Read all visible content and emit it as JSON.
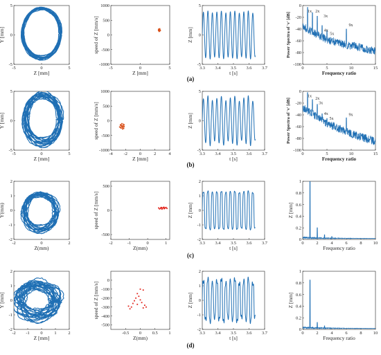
{
  "colors": {
    "blue": "#1f6fb4",
    "red": "#e2231a",
    "orange": "#d9531e",
    "axis": "#222222"
  },
  "rows": [
    {
      "caption": "(a)",
      "panels": [
        {
          "type": "orbit",
          "xlabel": "Z [mm]",
          "ylabel": "Y [mm]",
          "xlim": [
            -5,
            5
          ],
          "ylim": [
            -5,
            5
          ],
          "xticks": [
            "-5",
            "0",
            "5"
          ],
          "yticks": [
            "-5",
            "0",
            "5"
          ],
          "orbit": {
            "cx": 0,
            "cy": 0.3,
            "rx": 3.4,
            "ry": 4.2,
            "spread": 0.35,
            "wobble": 0.08,
            "loops": 14
          }
        },
        {
          "type": "poincare",
          "xlabel": "Z [mm]",
          "ylabel": "speed of Z [mm/s]",
          "xlim": [
            -5,
            5
          ],
          "ylim": [
            -1000,
            1000
          ],
          "xticks": [
            "-5",
            "0",
            "5"
          ],
          "yticks": [
            "-1000",
            "-500",
            "0",
            "500",
            "1000"
          ],
          "color": "orange",
          "points": [
            [
              3.1,
              150
            ],
            [
              3.2,
              180
            ],
            [
              3.3,
              160
            ],
            [
              3.15,
              200
            ],
            [
              3.25,
              140
            ],
            [
              3.35,
              170
            ],
            [
              3.2,
              120
            ],
            [
              3.3,
              210
            ],
            [
              3.1,
              175
            ],
            [
              3.4,
              150
            ],
            [
              3.22,
              190
            ],
            [
              3.28,
              130
            ]
          ]
        },
        {
          "type": "time",
          "xlabel": "t [s]",
          "ylabel": "Z [mm]",
          "xlim": [
            3.3,
            3.7
          ],
          "ylim": [
            -5,
            5
          ],
          "xticks": [
            "3.3",
            "3.4",
            "3.5",
            "3.6",
            "3.7"
          ],
          "yticks": [
            "-5",
            "0",
            "5"
          ],
          "wave": {
            "t0": 3.3,
            "t1": 3.64,
            "cycles": 11.8,
            "amp": 3.9,
            "irreg": 0.2
          }
        },
        {
          "type": "spectrum",
          "xlabel": "Frequency ratio",
          "ylabel": "Power Spectra of 'v' [dB]",
          "xlim": [
            0,
            15
          ],
          "ylim": [
            -100,
            0
          ],
          "xticks": [
            "0",
            "5",
            "10",
            "15"
          ],
          "yticks": [
            "-100",
            "-80",
            "-60",
            "-40",
            "-20",
            "0"
          ],
          "baseline": [
            [
              0,
              -35
            ],
            [
              2,
              -45
            ],
            [
              5,
              -58
            ],
            [
              8,
              -65
            ],
            [
              11,
              -70
            ],
            [
              15,
              -78
            ]
          ],
          "peaks": [
            {
              "x": 1,
              "y": -3
            },
            {
              "x": 2,
              "y": -12
            },
            {
              "x": 3,
              "y": -18
            },
            {
              "x": 4,
              "y": -34
            },
            {
              "x": 5,
              "y": -42
            },
            {
              "x": 9,
              "y": -40
            }
          ],
          "annotations": [
            {
              "text": "1x",
              "x": 1,
              "y": -12
            },
            {
              "text": "2x",
              "x": 2.6,
              "y": -12
            },
            {
              "text": "3x",
              "x": 4.3,
              "y": -20
            },
            {
              "text": "4x",
              "x": 4.4,
              "y": -44
            },
            {
              "text": "5x",
              "x": 5.6,
              "y": -50
            },
            {
              "text": "9x",
              "x": 9.5,
              "y": -35
            }
          ]
        }
      ]
    },
    {
      "caption": "(b)",
      "panels": [
        {
          "type": "orbit",
          "xlabel": "Z [mm]",
          "ylabel": "Y [mm]",
          "xlim": [
            -5,
            5
          ],
          "ylim": [
            -5,
            5
          ],
          "xticks": [
            "-5",
            "0",
            "5"
          ],
          "yticks": [
            "-5",
            "0",
            "5"
          ],
          "orbit": {
            "cx": 0.2,
            "cy": 0.3,
            "rx": 3.1,
            "ry": 4.0,
            "spread": 0.8,
            "wobble": 0.15,
            "loops": 18
          }
        },
        {
          "type": "poincare",
          "xlabel": "Z [mm]",
          "ylabel": "speed of Z [mm/s]",
          "xlim": [
            -4,
            4
          ],
          "ylim": [
            -1000,
            1000
          ],
          "xticks": [
            "-4",
            "-2",
            "0",
            "2",
            "4"
          ],
          "yticks": [
            "-1000",
            "-500",
            "0",
            "500",
            "1000"
          ],
          "color": "orange",
          "points": [
            [
              -2.7,
              -150
            ],
            [
              -2.5,
              -200
            ],
            [
              -2.3,
              -180
            ],
            [
              -2.6,
              -250
            ],
            [
              -2.4,
              -220
            ],
            [
              -2.2,
              -140
            ],
            [
              -2.8,
              -210
            ],
            [
              -2.45,
              -170
            ],
            [
              -2.35,
              -240
            ],
            [
              -2.55,
              -190
            ],
            [
              -2.65,
              -130
            ],
            [
              -2.25,
              -260
            ],
            [
              -2.5,
              -100
            ],
            [
              -2.4,
              -280
            ],
            [
              -2.6,
              -160
            ],
            [
              -2.3,
              -120
            ],
            [
              -2.7,
              -230
            ],
            [
              -2.2,
              -200
            ]
          ]
        },
        {
          "type": "time",
          "xlabel": "t [s]",
          "ylabel": "Z [mm]",
          "xlim": [
            3.3,
            3.7
          ],
          "ylim": [
            -5,
            5
          ],
          "xticks": [
            "3.3",
            "3.4",
            "3.5",
            "3.6",
            "3.7"
          ],
          "yticks": [
            "-5",
            "0",
            "5"
          ],
          "wave": {
            "t0": 3.3,
            "t1": 3.64,
            "cycles": 11.8,
            "amp": 3.8,
            "irreg": 0.5
          }
        },
        {
          "type": "spectrum",
          "xlabel": "Frequency ratio",
          "ylabel": "Power Spectra of 'v' [dB]",
          "xlim": [
            0,
            15
          ],
          "ylim": [
            -100,
            0
          ],
          "xticks": [
            "0",
            "5",
            "10",
            "15"
          ],
          "yticks": [
            "-100",
            "-80",
            "-60",
            "-40",
            "-20",
            "0"
          ],
          "baseline": [
            [
              0,
              -28
            ],
            [
              2,
              -38
            ],
            [
              5,
              -55
            ],
            [
              8,
              -65
            ],
            [
              11,
              -75
            ],
            [
              15,
              -85
            ]
          ],
          "peaks": [
            {
              "x": 1,
              "y": -2
            },
            {
              "x": 2,
              "y": -14
            },
            {
              "x": 3,
              "y": -22
            },
            {
              "x": 4,
              "y": -38
            },
            {
              "x": 5,
              "y": -46
            },
            {
              "x": 9,
              "y": -45
            }
          ],
          "annotations": [
            {
              "text": "1x",
              "x": 1,
              "y": -10
            },
            {
              "text": "2x",
              "x": 2.6,
              "y": -14
            },
            {
              "text": "3x",
              "x": 3.3,
              "y": -22
            },
            {
              "text": "4x",
              "x": 4.4,
              "y": -40
            },
            {
              "text": "5x",
              "x": 5.5,
              "y": -48
            },
            {
              "text": "9x",
              "x": 9.5,
              "y": -42
            }
          ]
        }
      ]
    },
    {
      "caption": "(c)",
      "panels": [
        {
          "type": "orbit",
          "xlabel": "Z(mm)",
          "ylabel": "Y(mm)",
          "xlim": [
            -2,
            2
          ],
          "ylim": [
            -2,
            2
          ],
          "xticks": [
            "-2",
            "0",
            "2"
          ],
          "yticks": [
            "-2",
            "-1",
            "0",
            "1",
            "2"
          ],
          "orbit": {
            "cx": -0.1,
            "cy": -0.1,
            "rx": 1.15,
            "ry": 1.2,
            "spread": 0.3,
            "wobble": 0.2,
            "loops": 16
          }
        },
        {
          "type": "poincare",
          "xlabel": "Z(mm)",
          "ylabel": "speed of Z [mm/s]",
          "xlim": [
            -2,
            1.2
          ],
          "ylim": [
            -600,
            600
          ],
          "xticks": [
            "-2",
            "-1",
            "0",
            "1"
          ],
          "yticks": [
            "-500",
            "0",
            "500"
          ],
          "color": "red",
          "points": [
            [
              0.6,
              50
            ],
            [
              0.7,
              40
            ],
            [
              0.75,
              60
            ],
            [
              0.8,
              45
            ],
            [
              0.85,
              55
            ],
            [
              0.9,
              35
            ],
            [
              0.95,
              50
            ],
            [
              1.0,
              60
            ],
            [
              0.65,
              30
            ],
            [
              0.78,
              25
            ],
            [
              0.88,
              65
            ],
            [
              1.05,
              40
            ],
            [
              0.72,
              55
            ],
            [
              0.92,
              45
            ]
          ]
        },
        {
          "type": "time",
          "xlabel": "t [s]",
          "ylabel": "Z [mm]",
          "xlim": [
            3.3,
            3.7
          ],
          "ylim": [
            -2,
            2
          ],
          "xticks": [
            "3.3",
            "3.4",
            "3.5",
            "3.6",
            "3.7"
          ],
          "yticks": [
            "-2",
            "-1",
            "0",
            "1",
            "2"
          ],
          "wave": {
            "t0": 3.3,
            "t1": 3.64,
            "cycles": 11.8,
            "amp": 1.3,
            "irreg": 0.15,
            "square": true
          }
        },
        {
          "type": "amp",
          "xlabel": "Frequency ratio",
          "ylabel": "Z [mm]",
          "xlim": [
            0,
            10
          ],
          "ylim": [
            0,
            1
          ],
          "xticks": [
            "0",
            "2",
            "4",
            "6",
            "8",
            "10"
          ],
          "yticks": [
            "0",
            "0.2",
            "0.4",
            "0.6",
            "0.8",
            "1"
          ],
          "peaks": [
            {
              "x": 1,
              "y": 1.0
            },
            {
              "x": 2,
              "y": 0.2
            },
            {
              "x": 3,
              "y": 0.08
            },
            {
              "x": 4,
              "y": 0.05
            }
          ]
        }
      ]
    },
    {
      "caption": "(d)",
      "panels": [
        {
          "type": "orbit",
          "xlabel": "Z [mm]",
          "ylabel": "Y [mm]",
          "xlim": [
            -2,
            2
          ],
          "ylim": [
            -2,
            2
          ],
          "xticks": [
            "-2",
            "-1",
            "0",
            "1",
            "2"
          ],
          "yticks": [
            "-2",
            "-1",
            "0",
            "1",
            "2"
          ],
          "orbit": {
            "cx": -0.3,
            "cy": 0.0,
            "rx": 1.3,
            "ry": 1.05,
            "spread": 0.6,
            "wobble": 0.35,
            "loops": 22
          }
        },
        {
          "type": "poincare",
          "xlabel": "Z(mm)",
          "ylabel": "speed of Z [mm/s]",
          "xlim": [
            -1,
            1
          ],
          "ylim": [
            -550,
            100
          ],
          "xticks": [
            "-0.5",
            "0",
            "0.5",
            "1"
          ],
          "yticks": [
            "-500",
            "-400",
            "-300",
            "-200",
            "-100",
            "0"
          ],
          "color": "red",
          "points": [
            [
              -0.4,
              -290
            ],
            [
              -0.3,
              -300
            ],
            [
              -0.25,
              -260
            ],
            [
              -0.2,
              -230
            ],
            [
              -0.15,
              -200
            ],
            [
              -0.1,
              -150
            ],
            [
              0.0,
              -100
            ],
            [
              0.1,
              -110
            ],
            [
              -0.05,
              -180
            ],
            [
              0.05,
              -250
            ],
            [
              -0.35,
              -320
            ],
            [
              0.15,
              -280
            ],
            [
              0.2,
              -300
            ],
            [
              0.1,
              -310
            ],
            [
              -0.1,
              -270
            ],
            [
              0.0,
              -220
            ]
          ]
        },
        {
          "type": "time",
          "xlabel": "t [s]",
          "ylabel": "Z [mm]",
          "xlim": [
            3.3,
            3.7
          ],
          "ylim": [
            -2,
            2
          ],
          "xticks": [
            "3.3",
            "3.4",
            "3.5",
            "3.6",
            "3.7"
          ],
          "yticks": [
            "-2",
            "-1",
            "0",
            "1",
            "2"
          ],
          "wave": {
            "t0": 3.3,
            "t1": 3.64,
            "cycles": 11.8,
            "amp": 1.35,
            "irreg": 0.5,
            "square": true
          }
        },
        {
          "type": "amp",
          "xlabel": "Frequency ratio",
          "ylabel": "Z [mm]",
          "xlim": [
            0,
            10
          ],
          "ylim": [
            0,
            1
          ],
          "xticks": [
            "0",
            "2",
            "4",
            "6",
            "8",
            "10"
          ],
          "yticks": [
            "0",
            "0.2",
            "0.4",
            "0.6",
            "0.8",
            "1"
          ],
          "peaks": [
            {
              "x": 1,
              "y": 0.85
            },
            {
              "x": 2,
              "y": 0.12
            },
            {
              "x": 3,
              "y": 0.06
            }
          ]
        }
      ]
    }
  ]
}
